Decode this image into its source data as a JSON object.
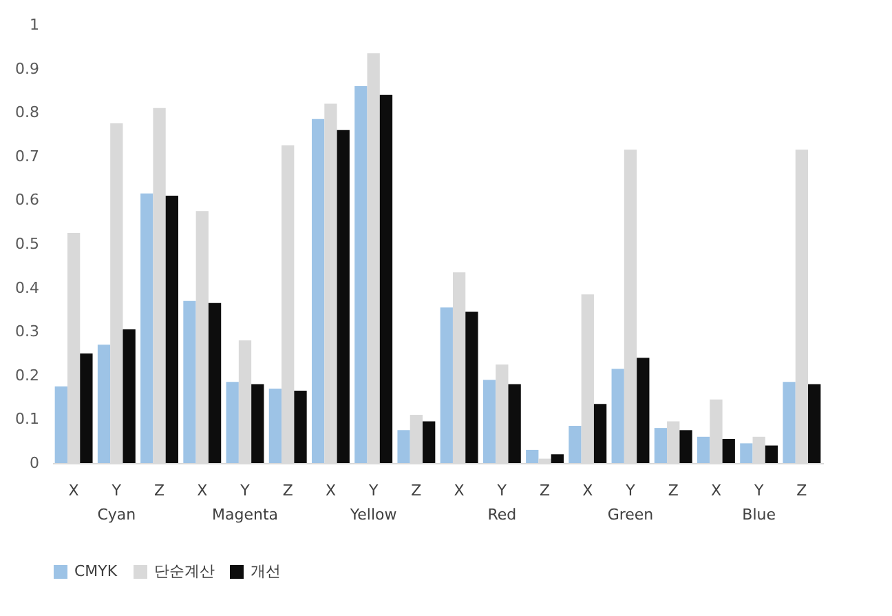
{
  "chart_data": {
    "type": "bar",
    "categories": [
      "X",
      "Y",
      "Z",
      "X",
      "Y",
      "Z",
      "X",
      "Y",
      "Z",
      "X",
      "Y",
      "Z",
      "X",
      "Y",
      "Z",
      "X",
      "Y",
      "Z"
    ],
    "annotations": [
      "Cyan",
      "Magenta",
      "Yellow",
      "Red",
      "Green",
      "Blue"
    ],
    "series": [
      {
        "name": "CMYK",
        "color": "#9dc3e6",
        "values": [
          0.175,
          0.27,
          0.615,
          0.37,
          0.185,
          0.17,
          0.785,
          0.86,
          0.075,
          0.355,
          0.19,
          0.03,
          0.085,
          0.215,
          0.08,
          0.06,
          0.045,
          0.185
        ]
      },
      {
        "name": "단순계산",
        "color": "#d9d9d9",
        "values": [
          0.525,
          0.775,
          0.81,
          0.575,
          0.28,
          0.725,
          0.82,
          0.935,
          0.11,
          0.435,
          0.225,
          0.01,
          0.385,
          0.715,
          0.095,
          0.145,
          0.06,
          0.715
        ]
      },
      {
        "name": "개선",
        "color": "#0d0d0d",
        "values": [
          0.25,
          0.305,
          0.61,
          0.365,
          0.18,
          0.165,
          0.76,
          0.84,
          0.095,
          0.345,
          0.18,
          0.02,
          0.135,
          0.24,
          0.075,
          0.055,
          0.04,
          0.18
        ]
      }
    ],
    "ylim": [
      0,
      1
    ],
    "yticks": [
      0,
      0.1,
      0.2,
      0.3,
      0.4,
      0.5,
      0.6,
      0.7,
      0.8,
      0.9,
      1
    ],
    "grid": false,
    "legend": "bottom"
  }
}
